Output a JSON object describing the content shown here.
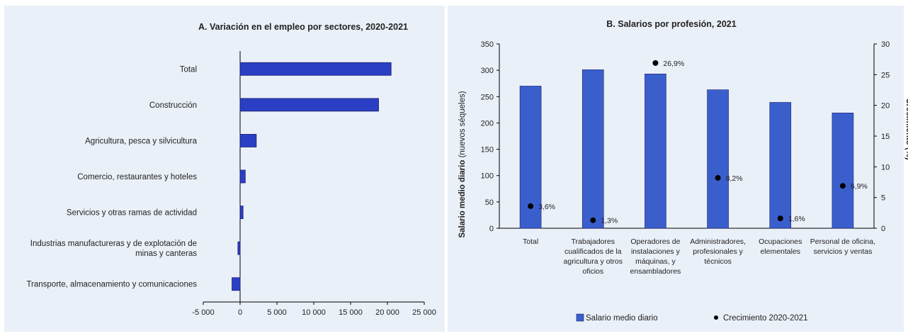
{
  "colors": {
    "bar": "#2b3fc4",
    "bar_stroke": "#1a1f6e",
    "bar_b": "#3a5fcd",
    "point": "#000000",
    "panel_bg": "#eaf0f8"
  },
  "chart_data": [
    {
      "type": "bar",
      "orientation": "horizontal",
      "title": "A. Variación  en el empleo por  sectores, 2020-2021",
      "categories": [
        "Total",
        "Construcción",
        "Agricultura, pesca y silvicultura",
        "Comercio, restaurantes y hoteles",
        "Servicios y otras ramas de actividad",
        "Industrias manufactureras y de explotación de minas y canteras",
        "Transporte, almacenamiento y comunicaciones"
      ],
      "category_lines": [
        [
          "Total"
        ],
        [
          "Construcción"
        ],
        [
          "Agricultura, pesca y silvicultura"
        ],
        [
          "Comercio, restaurantes y hoteles"
        ],
        [
          "Servicios y otras ramas de actividad"
        ],
        [
          "Industrias manufactureras y de explotación de",
          "minas y canteras"
        ],
        [
          "Transporte, almacenamiento y comunicaciones"
        ]
      ],
      "values": [
        20500,
        18800,
        2200,
        700,
        400,
        -300,
        -1100
      ],
      "xlim": [
        -5000,
        25000
      ],
      "xticks": [
        -5000,
        0,
        5000,
        10000,
        15000,
        20000,
        25000
      ],
      "xtick_labels": [
        "-5 000",
        "0",
        "5 000",
        "10 000",
        "15 000",
        "20 000",
        "25 000"
      ],
      "grid": false
    },
    {
      "type": "bar",
      "title": "B. Salarios por profesión, 2021",
      "categories": [
        "Total",
        "Trabajadores cualificados de la agricultura y otros oficios",
        "Operadores de instalaciones y máquinas, y ensambladores",
        "Administradores, profesionales y técnicos",
        "Ocupaciones elementales",
        "Personal de oficina, servicios y ventas"
      ],
      "category_lines": [
        [
          "Total"
        ],
        [
          "Trabajadores",
          "cualificados de la",
          "agricultura y otros",
          "oficios"
        ],
        [
          "Operadores de",
          "instalaciones y",
          "máquinas, y",
          "ensambladores"
        ],
        [
          "Administradores,",
          "profesionales y",
          "técnicos"
        ],
        [
          "Ocupaciones",
          "elementales"
        ],
        [
          "Personal de oficina,",
          "servicios y ventas"
        ]
      ],
      "series": [
        {
          "name": "Salario medio diario",
          "type": "bar",
          "axis": "left",
          "values": [
            270,
            301,
            293,
            263,
            239,
            219
          ]
        },
        {
          "name": "Crecimiento 2020-2021",
          "type": "scatter",
          "axis": "right",
          "values": [
            3.6,
            1.3,
            26.9,
            8.2,
            1.6,
            6.9
          ],
          "labels": [
            "3,6%",
            "1,3%",
            "26,9%",
            "8,2%",
            "1,6%",
            "6,9%"
          ]
        }
      ],
      "ylabel_bold": "Salario medio diario",
      "ylabel_rest": " (nuevos séqueles)",
      "y2label": "Crecimiento (%)",
      "ylim": [
        0,
        350
      ],
      "yticks": [
        0,
        50,
        100,
        150,
        200,
        250,
        300,
        350
      ],
      "y2lim": [
        0,
        30
      ],
      "y2ticks": [
        0,
        5,
        10,
        15,
        20,
        25,
        30
      ],
      "legend": [
        "Salario medio diario",
        "Crecimiento 2020-2021"
      ],
      "legend_position": "bottom",
      "grid": false
    }
  ]
}
